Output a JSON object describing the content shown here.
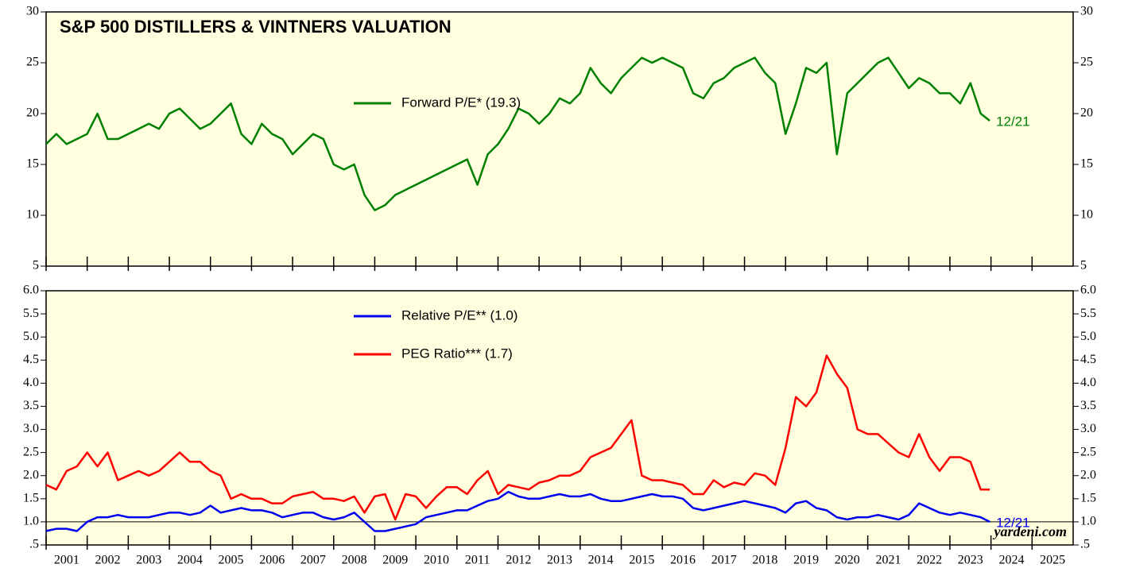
{
  "chart_data": [
    {
      "type": "line",
      "title": "S&P 500 DISTILLERS & VINTNERS VALUATION",
      "x": [
        2001,
        2001.25,
        2001.5,
        2001.75,
        2002,
        2002.25,
        2002.5,
        2002.75,
        2003,
        2003.25,
        2003.5,
        2003.75,
        2004,
        2004.25,
        2004.5,
        2004.75,
        2005,
        2005.25,
        2005.5,
        2005.75,
        2006,
        2006.25,
        2006.5,
        2006.75,
        2007,
        2007.25,
        2007.5,
        2007.75,
        2008,
        2008.25,
        2008.5,
        2008.75,
        2009,
        2009.25,
        2009.5,
        2009.75,
        2010,
        2010.25,
        2010.5,
        2010.75,
        2011,
        2011.25,
        2011.5,
        2011.75,
        2012,
        2012.25,
        2012.5,
        2012.75,
        2013,
        2013.25,
        2013.5,
        2013.75,
        2014,
        2014.25,
        2014.5,
        2014.75,
        2015,
        2015.25,
        2015.5,
        2015.75,
        2016,
        2016.25,
        2016.5,
        2016.75,
        2017,
        2017.25,
        2017.5,
        2017.75,
        2018,
        2018.25,
        2018.5,
        2018.75,
        2019,
        2019.25,
        2019.5,
        2019.75,
        2020,
        2020.25,
        2020.5,
        2020.75,
        2021,
        2021.25,
        2021.5,
        2021.75,
        2022,
        2022.25,
        2022.5,
        2022.75,
        2023,
        2023.25,
        2023.5,
        2023.75,
        2023.97
      ],
      "series": [
        {
          "name": "Forward P/E* (19.3)",
          "color": "#008000",
          "end_label": "12/21",
          "values": [
            17,
            18,
            17,
            17.5,
            18,
            20,
            17.5,
            17.5,
            18,
            18.5,
            19,
            18.5,
            20,
            20.5,
            19.5,
            18.5,
            19,
            20,
            21,
            18,
            17,
            19,
            18,
            17.5,
            16,
            17,
            18,
            17.5,
            15,
            14.5,
            15,
            12,
            10.5,
            11,
            12,
            12.5,
            13,
            13.5,
            14,
            14.5,
            15,
            15.5,
            13,
            16,
            17,
            18.5,
            20.5,
            20,
            19,
            20,
            21.5,
            21,
            22,
            24.5,
            23,
            22,
            23.5,
            24.5,
            25.5,
            25,
            25.5,
            25,
            24.5,
            22,
            21.5,
            23,
            23.5,
            24.5,
            25,
            25.5,
            24,
            23,
            18,
            21,
            24.5,
            24,
            25,
            16,
            22,
            23,
            24,
            25,
            25.5,
            24,
            22.5,
            23.5,
            23,
            22,
            22,
            21,
            23,
            20,
            19.3
          ]
        }
      ],
      "xlim": [
        2001,
        2026
      ],
      "xticks": [
        2001,
        2002,
        2003,
        2004,
        2005,
        2006,
        2007,
        2008,
        2009,
        2010,
        2011,
        2012,
        2013,
        2014,
        2015,
        2016,
        2017,
        2018,
        2019,
        2020,
        2021,
        2022,
        2023,
        2024,
        2025
      ],
      "ylim": [
        5,
        30
      ],
      "yticks": [
        5,
        10,
        15,
        20,
        25,
        30
      ]
    },
    {
      "type": "line",
      "source": "yardeni.com",
      "hline": 1,
      "x": [
        2001,
        2001.25,
        2001.5,
        2001.75,
        2002,
        2002.25,
        2002.5,
        2002.75,
        2003,
        2003.25,
        2003.5,
        2003.75,
        2004,
        2004.25,
        2004.5,
        2004.75,
        2005,
        2005.25,
        2005.5,
        2005.75,
        2006,
        2006.25,
        2006.5,
        2006.75,
        2007,
        2007.25,
        2007.5,
        2007.75,
        2008,
        2008.25,
        2008.5,
        2008.75,
        2009,
        2009.25,
        2009.5,
        2009.75,
        2010,
        2010.25,
        2010.5,
        2010.75,
        2011,
        2011.25,
        2011.5,
        2011.75,
        2012,
        2012.25,
        2012.5,
        2012.75,
        2013,
        2013.25,
        2013.5,
        2013.75,
        2014,
        2014.25,
        2014.5,
        2014.75,
        2015,
        2015.25,
        2015.5,
        2015.75,
        2016,
        2016.25,
        2016.5,
        2016.75,
        2017,
        2017.25,
        2017.5,
        2017.75,
        2018,
        2018.25,
        2018.5,
        2018.75,
        2019,
        2019.25,
        2019.5,
        2019.75,
        2020,
        2020.25,
        2020.5,
        2020.75,
        2021,
        2021.25,
        2021.5,
        2021.75,
        2022,
        2022.25,
        2022.5,
        2022.75,
        2023,
        2023.25,
        2023.5,
        2023.75,
        2023.97
      ],
      "series": [
        {
          "name": "Relative P/E** (1.0)",
          "color": "#0000ee",
          "end_label": "12/21",
          "values": [
            0.8,
            0.85,
            0.85,
            0.8,
            1.0,
            1.1,
            1.1,
            1.15,
            1.1,
            1.1,
            1.1,
            1.15,
            1.2,
            1.2,
            1.15,
            1.2,
            1.35,
            1.2,
            1.25,
            1.3,
            1.25,
            1.25,
            1.2,
            1.1,
            1.15,
            1.2,
            1.2,
            1.1,
            1.05,
            1.1,
            1.2,
            1.0,
            0.8,
            0.8,
            0.85,
            0.9,
            0.95,
            1.1,
            1.15,
            1.2,
            1.25,
            1.25,
            1.35,
            1.45,
            1.5,
            1.65,
            1.55,
            1.5,
            1.5,
            1.55,
            1.6,
            1.55,
            1.55,
            1.6,
            1.5,
            1.45,
            1.45,
            1.5,
            1.55,
            1.6,
            1.55,
            1.55,
            1.5,
            1.3,
            1.25,
            1.3,
            1.35,
            1.4,
            1.45,
            1.4,
            1.35,
            1.3,
            1.2,
            1.4,
            1.45,
            1.3,
            1.25,
            1.1,
            1.05,
            1.1,
            1.1,
            1.15,
            1.1,
            1.05,
            1.15,
            1.4,
            1.3,
            1.2,
            1.15,
            1.2,
            1.15,
            1.1,
            1.0
          ]
        },
        {
          "name": "PEG Ratio*** (1.7)",
          "color": "#ff0000",
          "values": [
            1.8,
            1.7,
            2.1,
            2.2,
            2.5,
            2.2,
            2.5,
            1.9,
            2.0,
            2.1,
            2.0,
            2.1,
            2.3,
            2.5,
            2.3,
            2.3,
            2.1,
            2.0,
            1.5,
            1.6,
            1.5,
            1.5,
            1.4,
            1.4,
            1.55,
            1.6,
            1.65,
            1.5,
            1.5,
            1.45,
            1.55,
            1.2,
            1.55,
            1.6,
            1.05,
            1.6,
            1.55,
            1.3,
            1.55,
            1.75,
            1.75,
            1.6,
            1.9,
            2.1,
            1.6,
            1.8,
            1.75,
            1.7,
            1.85,
            1.9,
            2.0,
            2.0,
            2.1,
            2.4,
            2.5,
            2.6,
            2.9,
            3.2,
            2.0,
            1.9,
            1.9,
            1.85,
            1.8,
            1.6,
            1.6,
            1.9,
            1.75,
            1.85,
            1.8,
            2.05,
            2.0,
            1.8,
            2.6,
            3.7,
            3.5,
            3.8,
            4.6,
            4.2,
            3.9,
            3.0,
            2.9,
            2.9,
            2.7,
            2.5,
            2.4,
            2.9,
            2.4,
            2.1,
            2.4,
            2.4,
            2.3,
            1.7,
            1.7
          ]
        }
      ],
      "xlim": [
        2001,
        2026
      ],
      "xticks": [
        2001,
        2002,
        2003,
        2004,
        2005,
        2006,
        2007,
        2008,
        2009,
        2010,
        2011,
        2012,
        2013,
        2014,
        2015,
        2016,
        2017,
        2018,
        2019,
        2020,
        2021,
        2022,
        2023,
        2024,
        2025
      ],
      "ylim": [
        0.5,
        6
      ],
      "yticks": [
        {
          "value": 0.5,
          "label": ".5"
        },
        {
          "value": 1,
          "label": "1.0"
        },
        {
          "value": 1.5,
          "label": "1.5"
        },
        {
          "value": 2,
          "label": "2.0"
        },
        {
          "value": 2.5,
          "label": "2.5"
        },
        {
          "value": 3,
          "label": "3.0"
        },
        {
          "value": 3.5,
          "label": "3.5"
        },
        {
          "value": 4,
          "label": "4.0"
        },
        {
          "value": 4.5,
          "label": "4.5"
        },
        {
          "value": 5,
          "label": "5.0"
        },
        {
          "value": 5.5,
          "label": "5.5"
        },
        {
          "value": 6,
          "label": "6.0"
        }
      ]
    }
  ]
}
